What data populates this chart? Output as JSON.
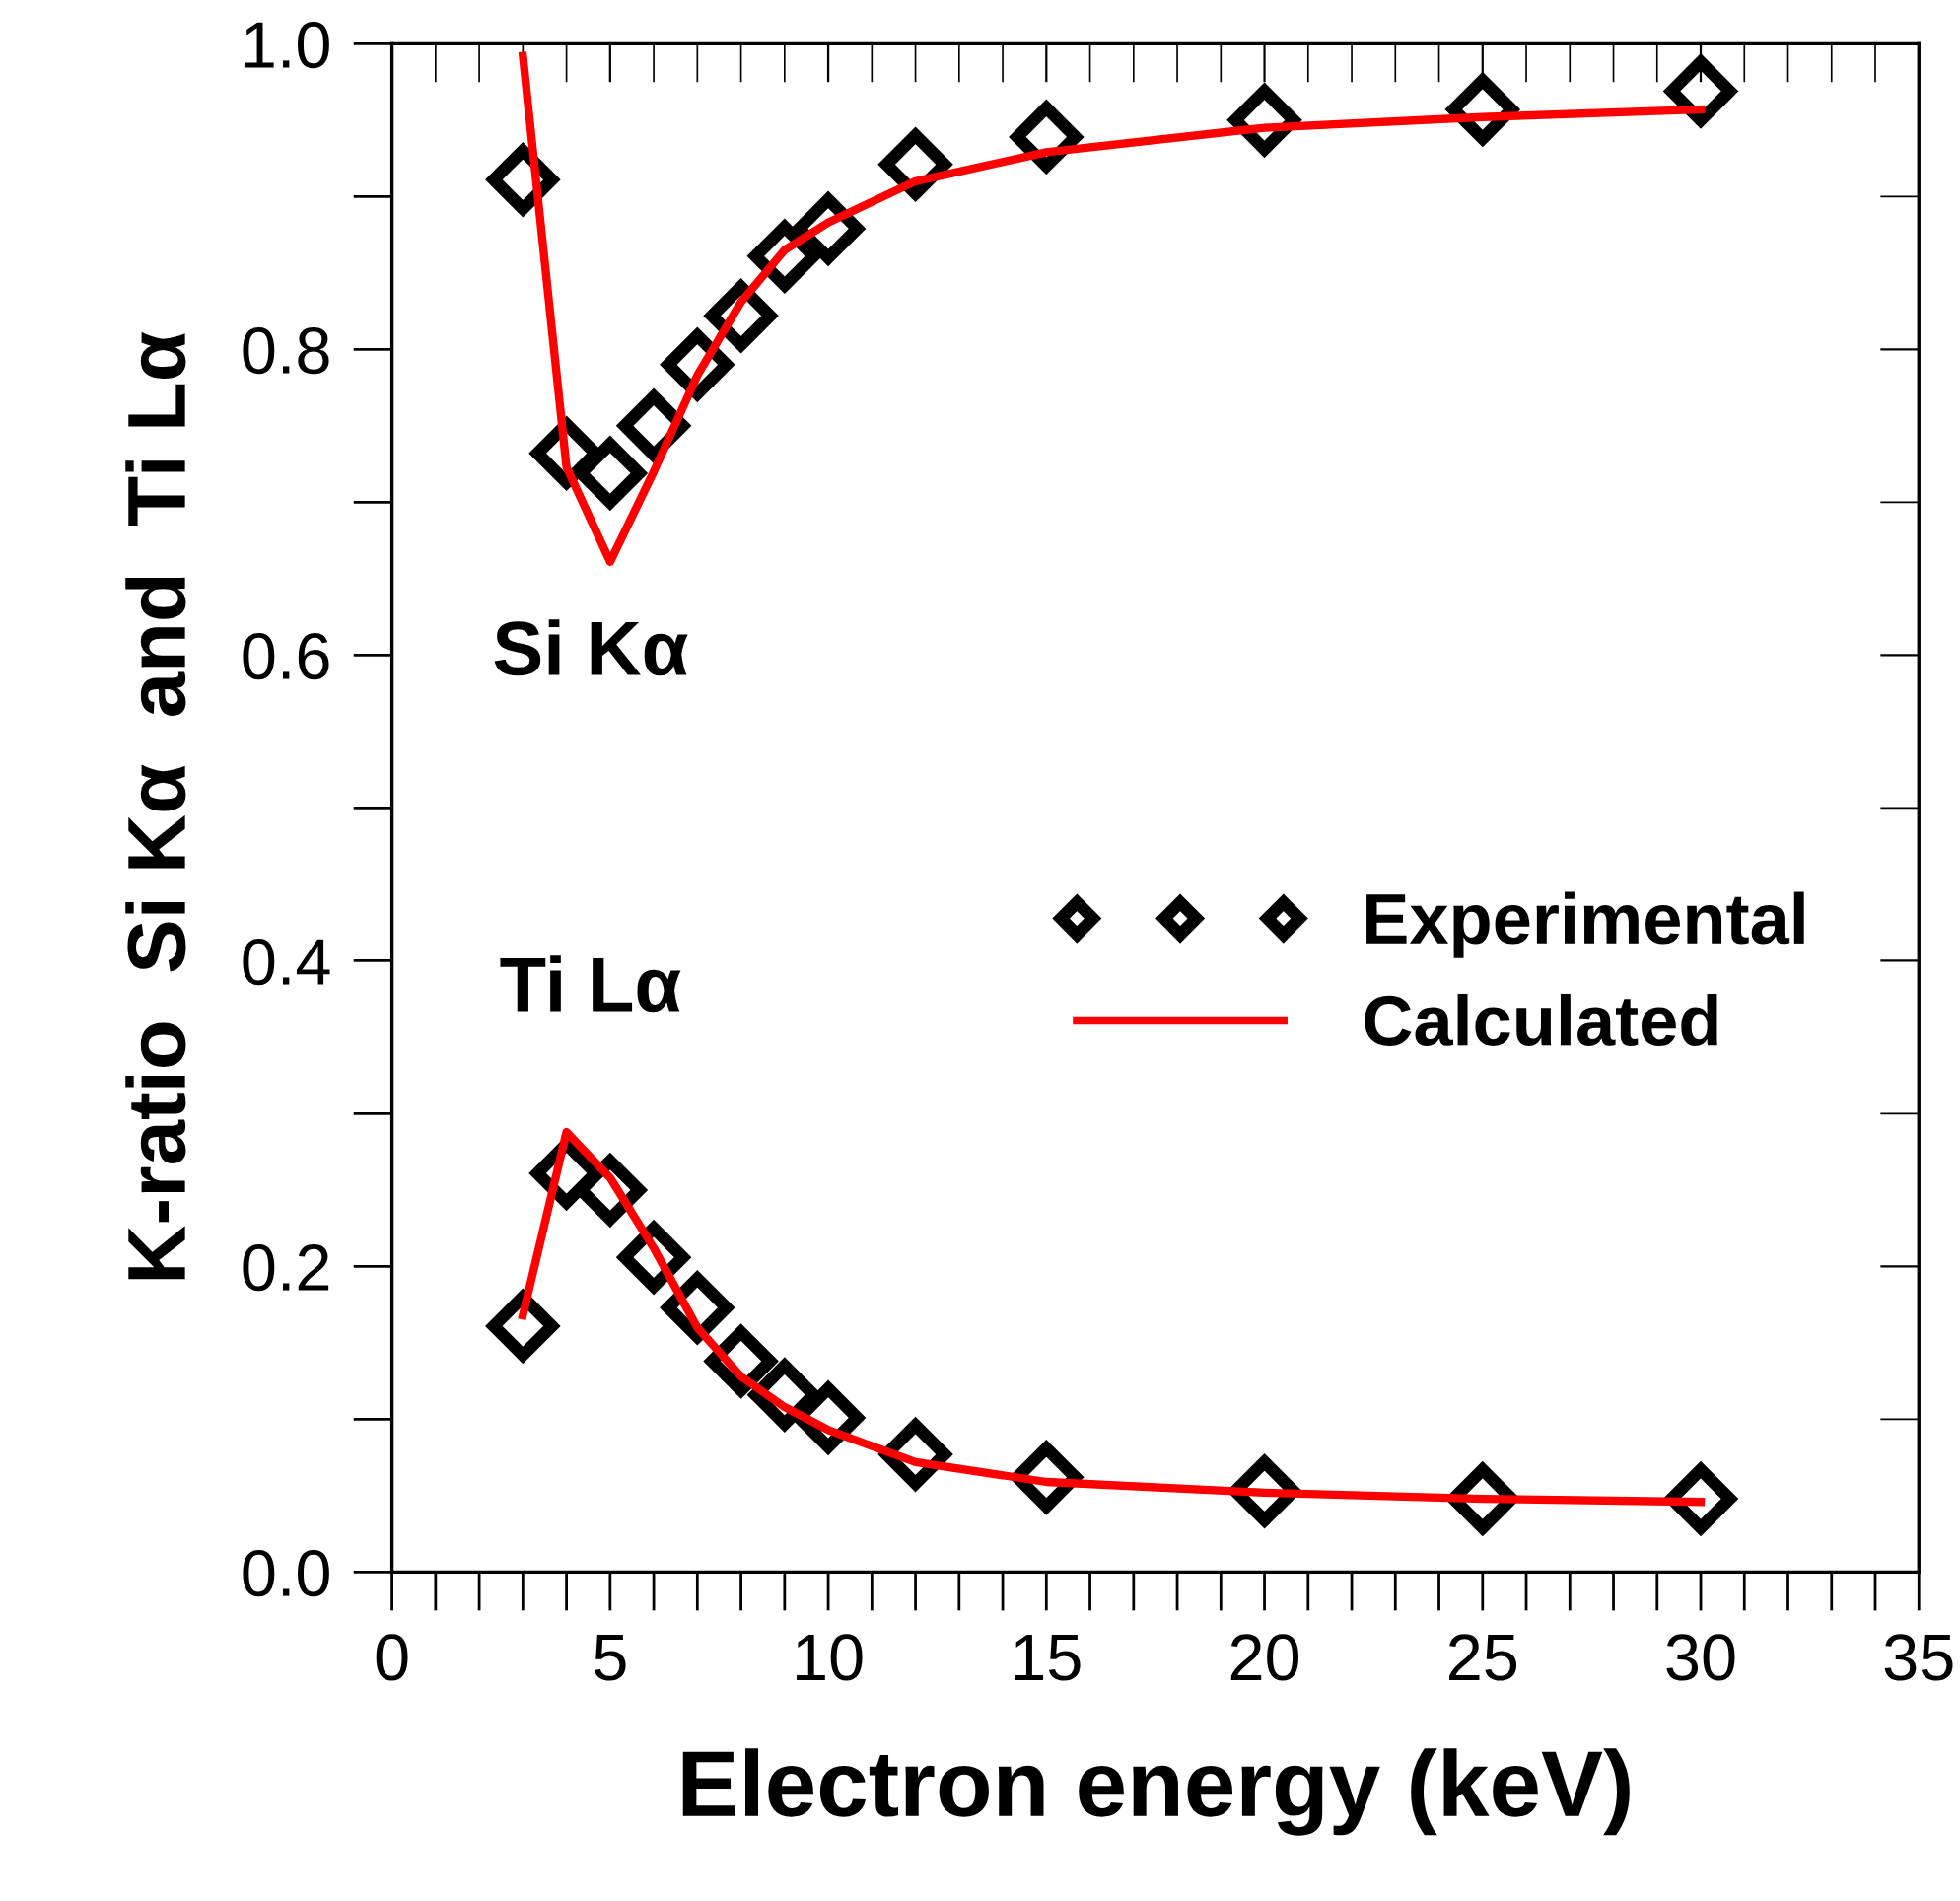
{
  "chart_data": {
    "type": "scatter",
    "xlabel": "Electron energy (keV)",
    "ylabel": "K-ratio  Si Kα  and  Ti Lα",
    "xlim": [
      0,
      35
    ],
    "xticks": [
      0,
      5,
      10,
      15,
      20,
      25,
      30,
      35
    ],
    "ylim": [
      0,
      1
    ],
    "yticks": [
      {
        "value": 0,
        "label": "0.0"
      },
      0.2,
      0.4,
      0.6,
      0.8,
      {
        "value": 1,
        "label": "1.0"
      }
    ],
    "grid": false,
    "legend": "right",
    "line_style": "solid",
    "annotations": [
      "Si Kα",
      "Ti Lα"
    ],
    "series": [
      {
        "name": "Experimental",
        "marker": "diamond",
        "color": "#000000",
        "x": [
          3,
          4,
          5,
          6,
          7,
          8,
          9,
          10,
          12,
          15,
          20,
          25,
          30
        ],
        "values": [
          0.911,
          0.732,
          0.719,
          0.75,
          0.79,
          0.822,
          0.861,
          0.879,
          0.921,
          0.939,
          0.95,
          0.957,
          0.969
        ]
      },
      {
        "name": "Calculated",
        "type": "line",
        "color": "#ff0000",
        "x": [
          3,
          4,
          5,
          6,
          7,
          8,
          9,
          10,
          12,
          15,
          20,
          25,
          30
        ],
        "values": [
          0.992,
          0.723,
          0.661,
          0.72,
          0.783,
          0.831,
          0.865,
          0.883,
          0.91,
          0.929,
          0.945,
          0.952,
          0.957
        ]
      },
      {
        "marker": "diamond",
        "color": "#000000",
        "x": [
          3,
          4,
          5,
          6,
          7,
          8,
          9,
          10,
          12,
          15,
          20,
          25,
          30
        ],
        "values": [
          0.161,
          0.261,
          0.25,
          0.206,
          0.173,
          0.138,
          0.116,
          0.101,
          0.077,
          0.062,
          0.053,
          0.048,
          0.048
        ]
      },
      {
        "type": "line",
        "color": "#ff0000",
        "x": [
          3,
          4,
          5,
          6,
          7,
          8,
          9,
          10,
          12,
          15,
          20,
          25,
          30
        ],
        "values": [
          0.168,
          0.288,
          0.258,
          0.212,
          0.16,
          0.128,
          0.108,
          0.093,
          0.072,
          0.059,
          0.052,
          0.048,
          0.046
        ]
      }
    ]
  }
}
